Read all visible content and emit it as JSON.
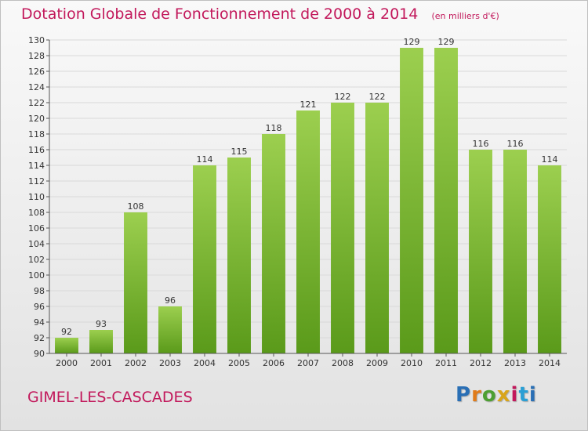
{
  "header": {
    "title": "Dotation Globale de Fonctionnement de 2000 à 2014",
    "subtitle": "(en milliers d'€)"
  },
  "footer": {
    "place": "GIMEL-LES-CASCADES",
    "logo": "Proxiti"
  },
  "colors": {
    "title": "#c2185b",
    "bar_top": "#9ccf4f",
    "bar_bottom": "#5a9a1a",
    "grid": "#d9d9d9"
  },
  "chart_data": {
    "type": "bar",
    "title": "Dotation Globale de Fonctionnement de 2000 à 2014",
    "subtitle": "(en milliers d'€)",
    "xlabel": "",
    "ylabel": "",
    "categories": [
      "2000",
      "2001",
      "2002",
      "2003",
      "2004",
      "2005",
      "2006",
      "2007",
      "2008",
      "2009",
      "2010",
      "2011",
      "2012",
      "2013",
      "2014"
    ],
    "values": [
      92,
      93,
      108,
      96,
      114,
      115,
      118,
      121,
      122,
      122,
      129,
      129,
      116,
      116,
      114
    ],
    "ylim": [
      90,
      130
    ],
    "ytick_step": 2,
    "grid": true,
    "legend": "none"
  }
}
